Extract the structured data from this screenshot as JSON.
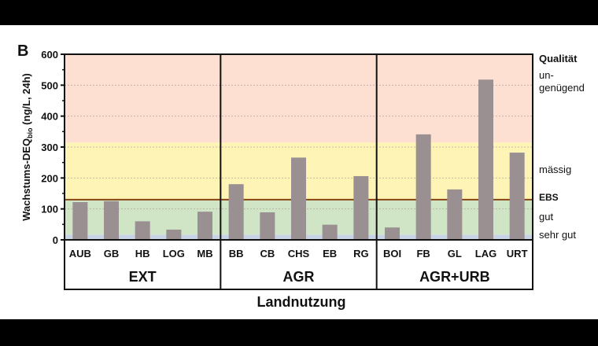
{
  "panel_label": "B",
  "chart_data": {
    "type": "bar",
    "title": "",
    "xlabel": "Landnutzung",
    "ylabel": "Wachstums-DEQbio (ng/L, 24h)",
    "ylabel_parts": {
      "main": "Wachstums-DEQ",
      "sub": "bio",
      "rest": " (ng/L, 24h)"
    },
    "ylim": [
      0,
      600
    ],
    "yticks": [
      0,
      100,
      200,
      300,
      400,
      500,
      600
    ],
    "grid": true,
    "groups": [
      {
        "name": "EXT",
        "categories": [
          "AUB",
          "GB",
          "HB",
          "LOG",
          "MB"
        ],
        "values": [
          122,
          125,
          60,
          33,
          91
        ]
      },
      {
        "name": "AGR",
        "categories": [
          "BB",
          "CB",
          "CHS",
          "EB",
          "RG"
        ],
        "values": [
          180,
          89,
          266,
          49,
          206
        ]
      },
      {
        "name": "AGR+URB",
        "categories": [
          "BOI",
          "FB",
          "GL",
          "LAG",
          "URT"
        ],
        "values": [
          40,
          341,
          163,
          518,
          282
        ]
      }
    ],
    "categories": [
      "AUB",
      "GB",
      "HB",
      "LOG",
      "MB",
      "BB",
      "CB",
      "CHS",
      "EB",
      "RG",
      "BOI",
      "FB",
      "GL",
      "LAG",
      "URT"
    ],
    "values": [
      122,
      125,
      60,
      33,
      91,
      180,
      89,
      266,
      49,
      206,
      40,
      341,
      163,
      518,
      282
    ],
    "bar_color": "#9a9092",
    "quality_bands": [
      {
        "label": "sehr gut",
        "from": 0,
        "to": 17,
        "color": "#c9d3e6"
      },
      {
        "label": "gut",
        "from": 17,
        "to": 130,
        "color": "#cfe5c6"
      },
      {
        "label": "mässig",
        "from": 130,
        "to": 315,
        "color": "#fdf4b6"
      },
      {
        "label": "ungenügend",
        "from": 315,
        "to": 600,
        "color": "#fde0d2"
      }
    ],
    "threshold": {
      "label": "EBS",
      "value": 130,
      "color": "#8b4513"
    },
    "right_axis": {
      "title": "Qualität",
      "labels": [
        {
          "text": "un-",
          "y": 100,
          "line2": "genügend"
        },
        {
          "text": "mässig",
          "y": 220
        },
        {
          "text": "EBS",
          "y": 255
        },
        {
          "text": "gut",
          "y": 280
        },
        {
          "text": "sehr gut",
          "y": 303
        }
      ]
    }
  }
}
